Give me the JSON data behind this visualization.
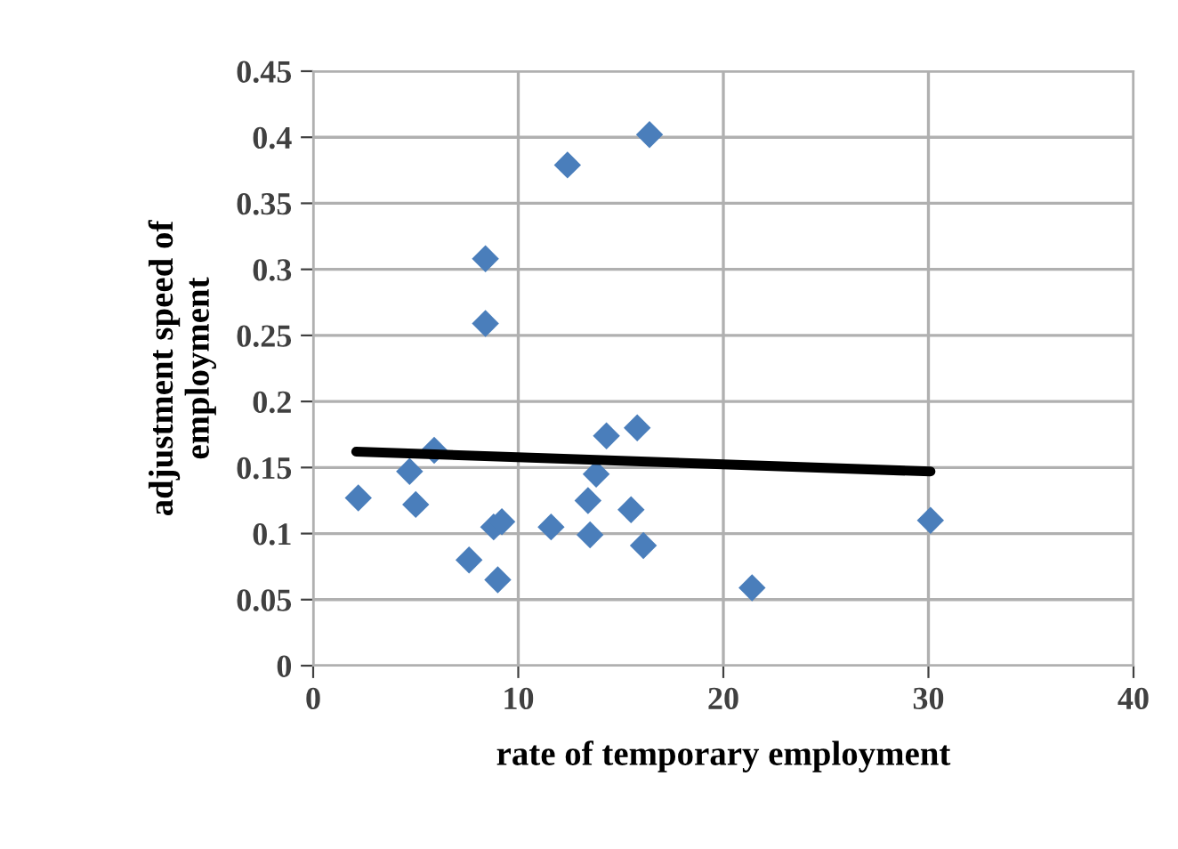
{
  "chart_data": {
    "type": "scatter",
    "xlabel": "rate of temporary employment",
    "ylabel": "adjustment speed of\nemployment",
    "xlim": [
      0,
      40
    ],
    "xticks": [
      0,
      10,
      20,
      30,
      40
    ],
    "ylim": [
      0,
      0.45
    ],
    "yticks": [
      0,
      0.05,
      0.1,
      0.15,
      0.2,
      0.25,
      0.3,
      0.35,
      0.4,
      0.45
    ],
    "grid": true,
    "series": [
      {
        "marker": "diamond",
        "color": "#4a7ebb",
        "x": [
          2.2,
          4.7,
          5.0,
          5.9,
          7.6,
          8.4,
          8.4,
          8.8,
          9.2,
          9.0,
          11.6,
          12.4,
          13.5,
          13.4,
          13.8,
          14.3,
          15.8,
          15.5,
          16.1,
          16.4,
          21.4,
          30.1
        ],
        "values": [
          0.127,
          0.147,
          0.122,
          0.163,
          0.08,
          0.308,
          0.259,
          0.105,
          0.109,
          0.065,
          0.105,
          0.379,
          0.099,
          0.125,
          0.145,
          0.174,
          0.18,
          0.118,
          0.091,
          0.402,
          0.059,
          0.11
        ]
      },
      {
        "type": "line",
        "color": "#000000",
        "x": [
          2.1,
          30.1
        ],
        "values": [
          0.162,
          0.147
        ]
      }
    ]
  }
}
